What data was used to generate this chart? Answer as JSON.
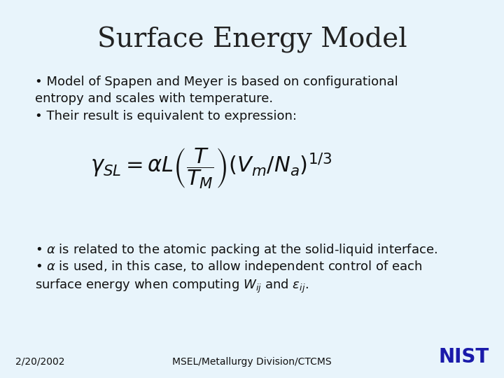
{
  "title": "Surface Energy Model",
  "title_fontsize": 28,
  "title_color": "#222222",
  "bg_color": "#e8f4fb",
  "bullet1_line1": "• Model of Spapen and Meyer is based on configurational",
  "bullet1_line2": "entropy and scales with temperature.",
  "bullet2": "• Their result is equivalent to expression:",
  "bullet3": "• $\\alpha$ is related to the atomic packing at the solid-liquid interface.",
  "bullet4_line1": "• $\\alpha$ is used, in this case, to allow independent control of each",
  "bullet4_line2": "surface energy when computing $W_{ij}$ and $\\varepsilon_{ij}$.",
  "formula": "$\\gamma_{SL} = \\alpha L \\left( \\dfrac{T}{T_M} \\right) \\left( V_m / N_a \\right)^{1/3}$",
  "footer_left": "2/20/2002",
  "footer_center": "MSEL/Metallurgy Division/CTCMS",
  "nist_color": "#1a1aaa",
  "text_color": "#111111",
  "text_fontsize": 13,
  "formula_fontsize": 22,
  "footer_fontsize": 10
}
